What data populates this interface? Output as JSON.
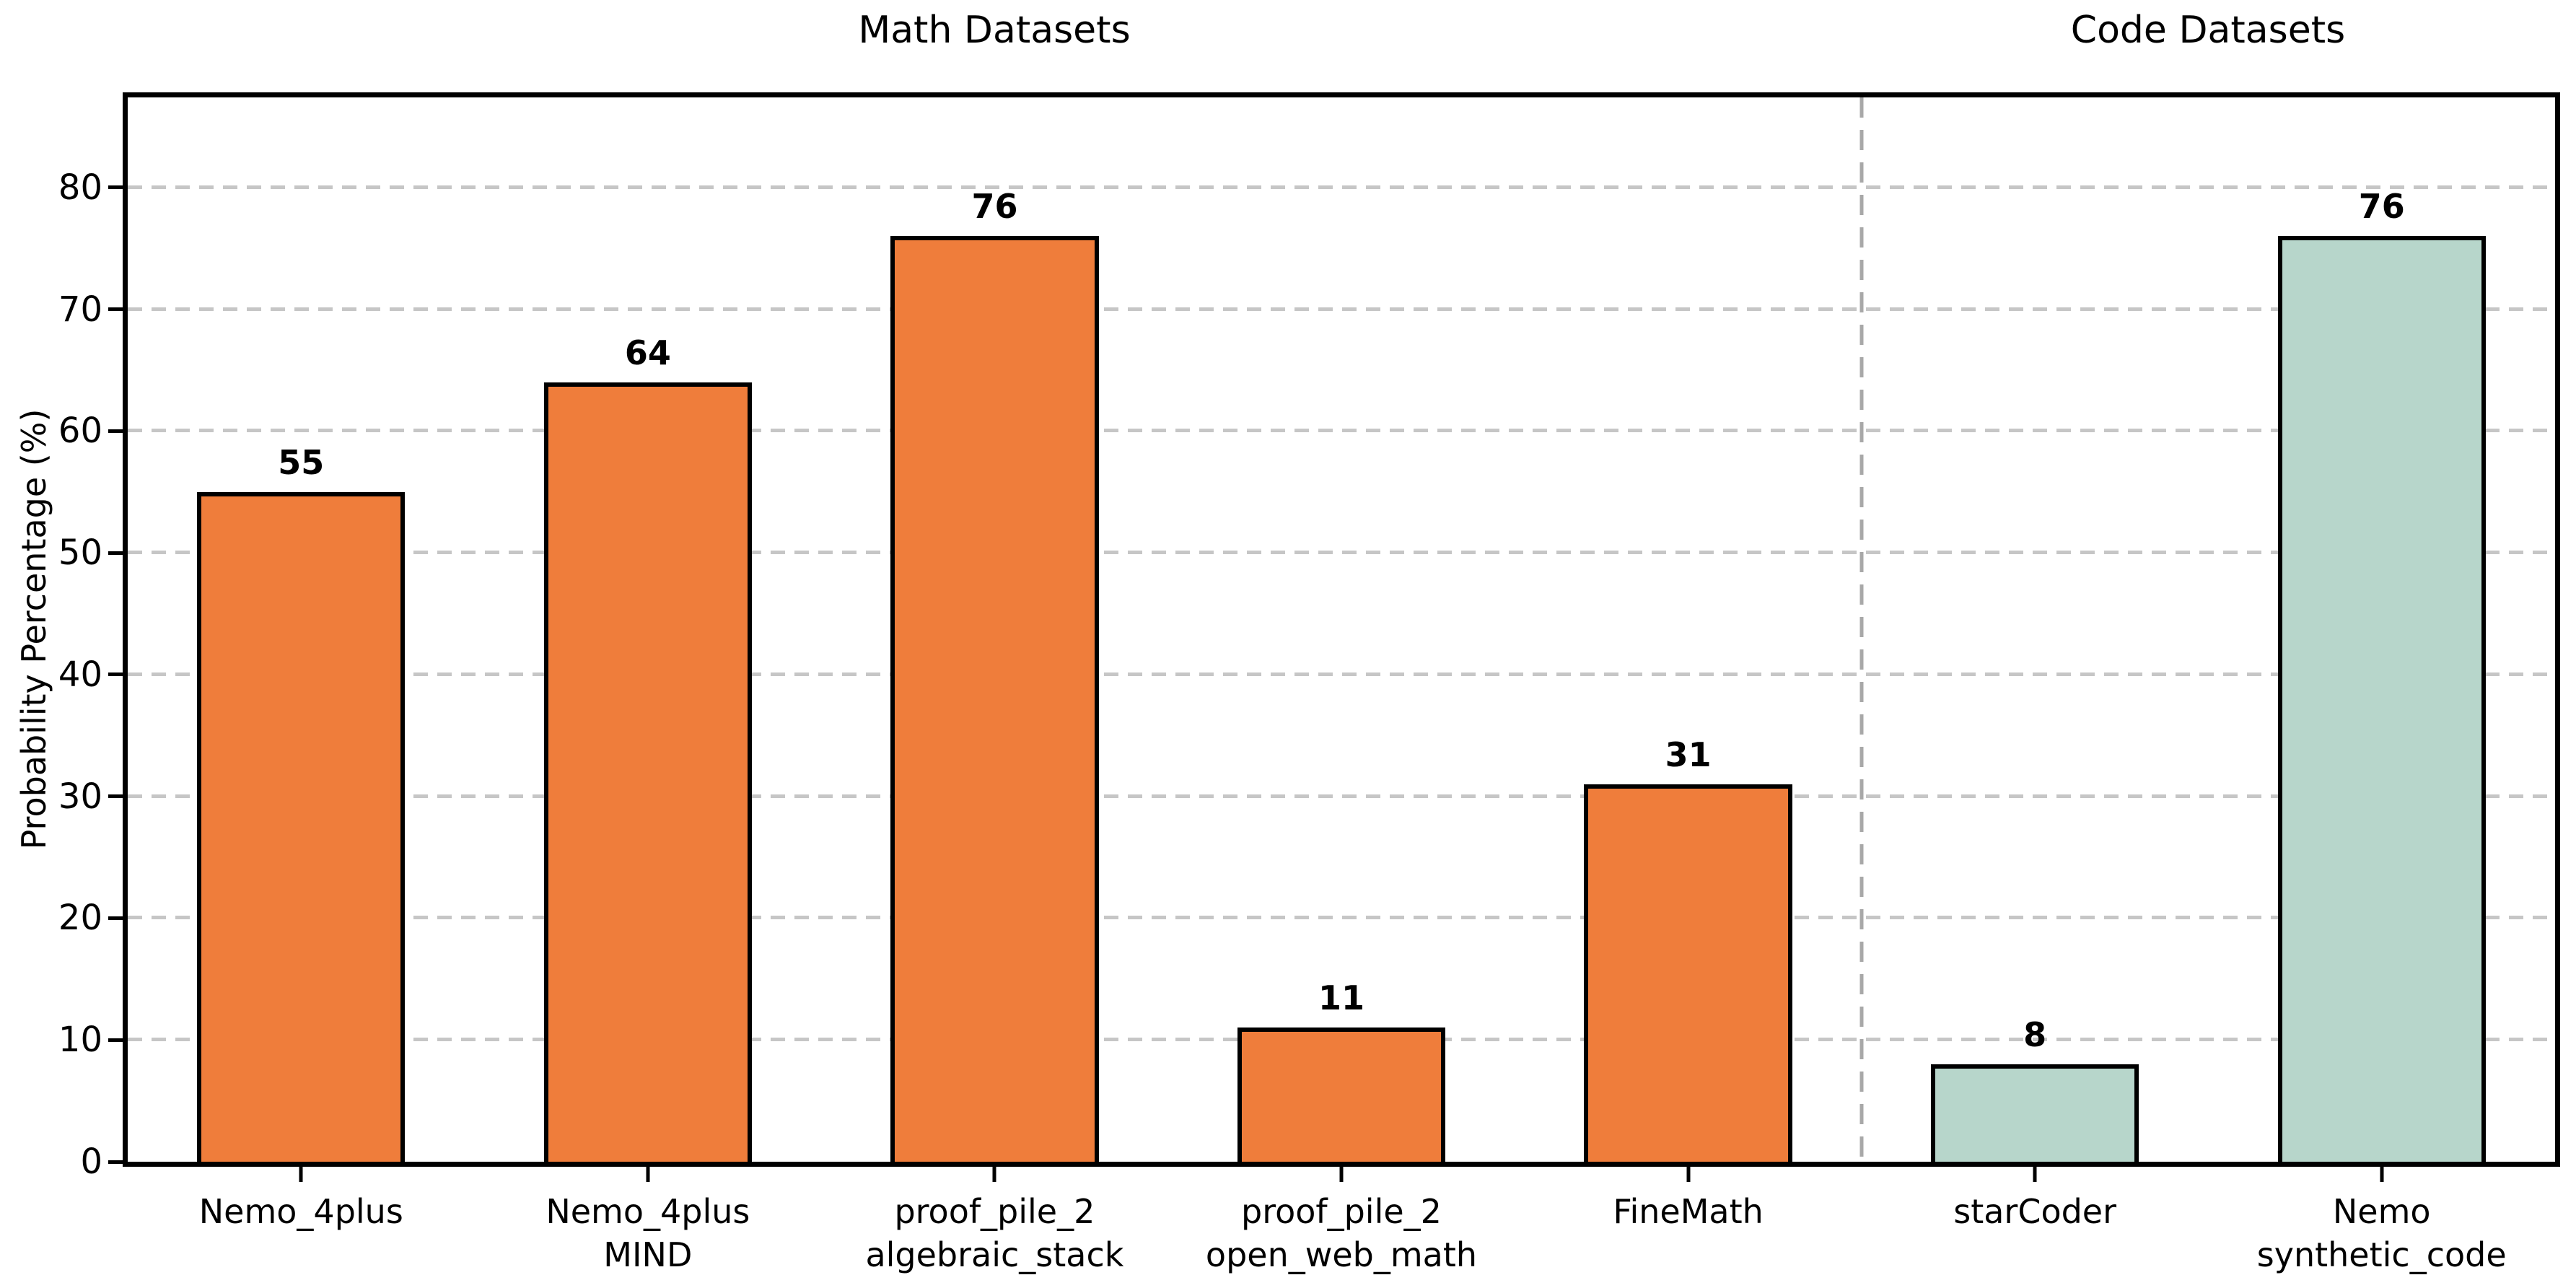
{
  "chart_data": {
    "type": "bar",
    "group_titles": [
      "Math Datasets",
      "Code Datasets"
    ],
    "group_spans": [
      [
        0,
        4
      ],
      [
        5,
        6
      ]
    ],
    "ylabel": "Probability Percentage (%)",
    "categories": [
      "Nemo_4plus",
      "Nemo_4plus\nMIND",
      "proof_pile_2\nalgebraic_stack",
      "proof_pile_2\nopen_web_math",
      "FineMath",
      "starCoder",
      "Nemo\nsynthetic_code"
    ],
    "values": [
      55,
      64,
      76,
      11,
      31,
      8,
      76
    ],
    "value_labels": [
      "55",
      "64",
      "76",
      "11",
      "31",
      "8",
      "76"
    ],
    "bar_groups": [
      "math",
      "math",
      "math",
      "math",
      "math",
      "code",
      "code"
    ],
    "yticks": [
      0,
      10,
      20,
      30,
      40,
      50,
      60,
      70,
      80
    ],
    "ylim": [
      0,
      87.4
    ],
    "grid": {
      "axis": "y",
      "style": "dashed"
    },
    "legend": "none",
    "separator_after_category_index": 4,
    "bar_width_fraction": 0.6,
    "colors": {
      "math_bar": "#EF7D3B",
      "code_bar": "#B7D6CB",
      "bar_edge": "#000000",
      "grid_line": "#C6C6C6",
      "separator_line": "#A8A8A8",
      "axis": "#000000",
      "text": "#000000",
      "background": "#FFFFFF"
    }
  }
}
